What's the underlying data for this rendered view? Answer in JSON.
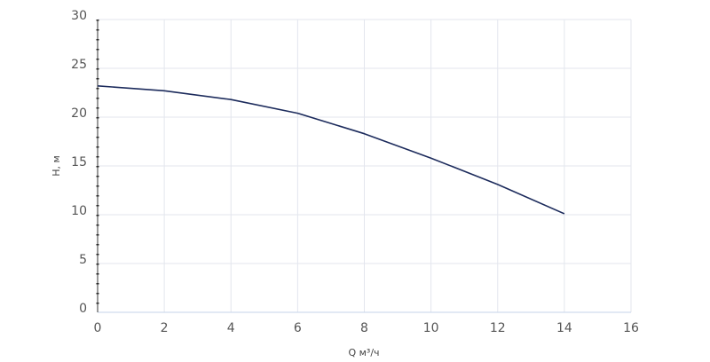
{
  "chart_data": {
    "type": "line",
    "x_label": "Q м³/ч",
    "y_label": "H, м",
    "x": [
      0,
      2,
      4,
      6,
      8,
      10,
      12,
      14
    ],
    "series": [
      {
        "color": "#1c2b5c",
        "values": [
          23.2,
          22.7,
          21.8,
          20.4,
          18.3,
          15.8,
          13.1,
          10.1
        ]
      }
    ],
    "xlim": [
      0,
      16
    ],
    "xticks": [
      0,
      2,
      4,
      6,
      8,
      10,
      12,
      14,
      16
    ],
    "ylim": [
      0,
      30
    ],
    "yticks": [
      0,
      5,
      10,
      15,
      20,
      25,
      30
    ],
    "grid": true
  }
}
